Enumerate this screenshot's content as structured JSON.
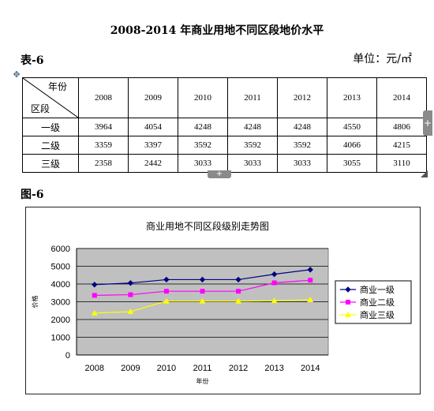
{
  "document": {
    "title": "2008-2014 年商业用地不同区段地价水平",
    "table_label": "表-6",
    "unit": "单位：元/㎡",
    "figure_label": "图-6"
  },
  "table": {
    "corner_top": "年份",
    "corner_bottom": "区段",
    "years": [
      "2008",
      "2009",
      "2010",
      "2011",
      "2012",
      "2013",
      "2014"
    ],
    "rows": [
      {
        "label": "一级",
        "values": [
          "3964",
          "4054",
          "4248",
          "4248",
          "4248",
          "4550",
          "4806"
        ]
      },
      {
        "label": "二级",
        "values": [
          "3359",
          "3397",
          "3592",
          "3592",
          "3592",
          "4066",
          "4215"
        ]
      },
      {
        "label": "三级",
        "values": [
          "2358",
          "2442",
          "3033",
          "3033",
          "3033",
          "3055",
          "3110"
        ]
      }
    ]
  },
  "editor_controls": {
    "move_handle_icon": "move-arrows-icon",
    "add_column_icon": "plus-icon",
    "add_row_icon": "plus-icon",
    "resize_icon": "resize-corner-icon"
  },
  "chart_data": {
    "type": "line",
    "title": "商业用地不同区段级别走势图",
    "xlabel": "年份",
    "ylabel": "价格",
    "categories": [
      "2008",
      "2009",
      "2010",
      "2011",
      "2012",
      "2013",
      "2014"
    ],
    "ylim": [
      0,
      6000
    ],
    "yticks": [
      0,
      1000,
      2000,
      3000,
      4000,
      5000,
      6000
    ],
    "grid": true,
    "legend_position": "right",
    "plot_background": "#c0c0c0",
    "series": [
      {
        "name": "商业一级",
        "color": "#000080",
        "marker": "diamond",
        "values": [
          3964,
          4054,
          4248,
          4248,
          4248,
          4550,
          4806
        ]
      },
      {
        "name": "商业二级",
        "color": "#ff00ff",
        "marker": "square",
        "values": [
          3359,
          3397,
          3592,
          3592,
          3592,
          4066,
          4215
        ]
      },
      {
        "name": "商业三级",
        "color": "#ffff00",
        "marker": "triangle",
        "values": [
          2358,
          2442,
          3033,
          3033,
          3033,
          3055,
          3110
        ]
      }
    ]
  }
}
